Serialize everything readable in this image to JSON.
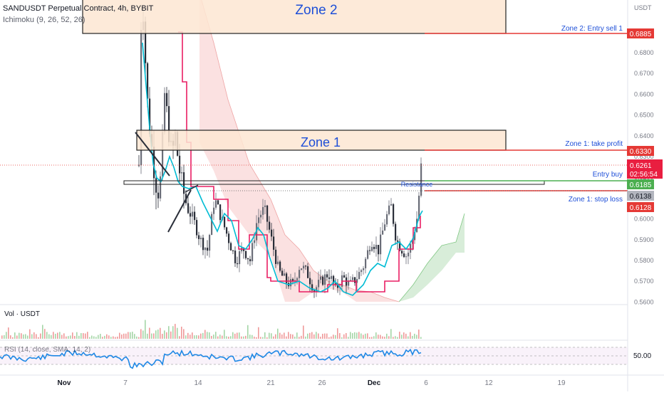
{
  "header": {
    "title": "SANDUSDT Perpetual Contract, 4h, BYBIT",
    "indicator": "Ichimoku (9, 26, 52, 26)"
  },
  "price_axis": {
    "currency": "USDT",
    "ticks": [
      "0.6800",
      "0.6700",
      "0.6600",
      "0.6500",
      "0.6400",
      "0.6300",
      "0.6200",
      "0.6100",
      "0.6000",
      "0.5900",
      "0.5800",
      "0.5700",
      "0.5600"
    ],
    "labels": {
      "zone2_entry": "0.6885",
      "zone1_tp": "0.6330",
      "last_price": "0.6261",
      "countdown": "02:56:54",
      "entry_buy": "0.6185",
      "dotted": "0.6138",
      "stop_loss": "0.6128"
    }
  },
  "annotations": {
    "zone2": "Zone 2",
    "zone1": "Zone 1",
    "zone2_entry": "Zone 2: Entry sell 1",
    "zone1_tp": "Zone 1: take profit",
    "entry_buy": "Entry buy",
    "stop_loss": "Zone 1: stop loss",
    "resistance": "Resistance"
  },
  "volume_pane": {
    "label": "Vol · USDT"
  },
  "rsi_pane": {
    "label": "RSI (14, close, SMA, 14, 2)",
    "level": "50.00"
  },
  "time_axis": {
    "labels": [
      "Nov",
      "7",
      "14",
      "21",
      "26",
      "Dec",
      "6",
      "12",
      "19"
    ]
  },
  "colors": {
    "bullish": "#6a6d78",
    "bearish": "#2a2e39",
    "conversion": "#00bcd4",
    "base": "#e91e63",
    "cloud_bear": "#f8c8c8",
    "cloud_bull": "#c8e6c9",
    "zone_fill": "#fde6d2",
    "red_line": "#e53935",
    "green_line": "#4caf50",
    "blue_text": "#1e4fd8"
  }
}
